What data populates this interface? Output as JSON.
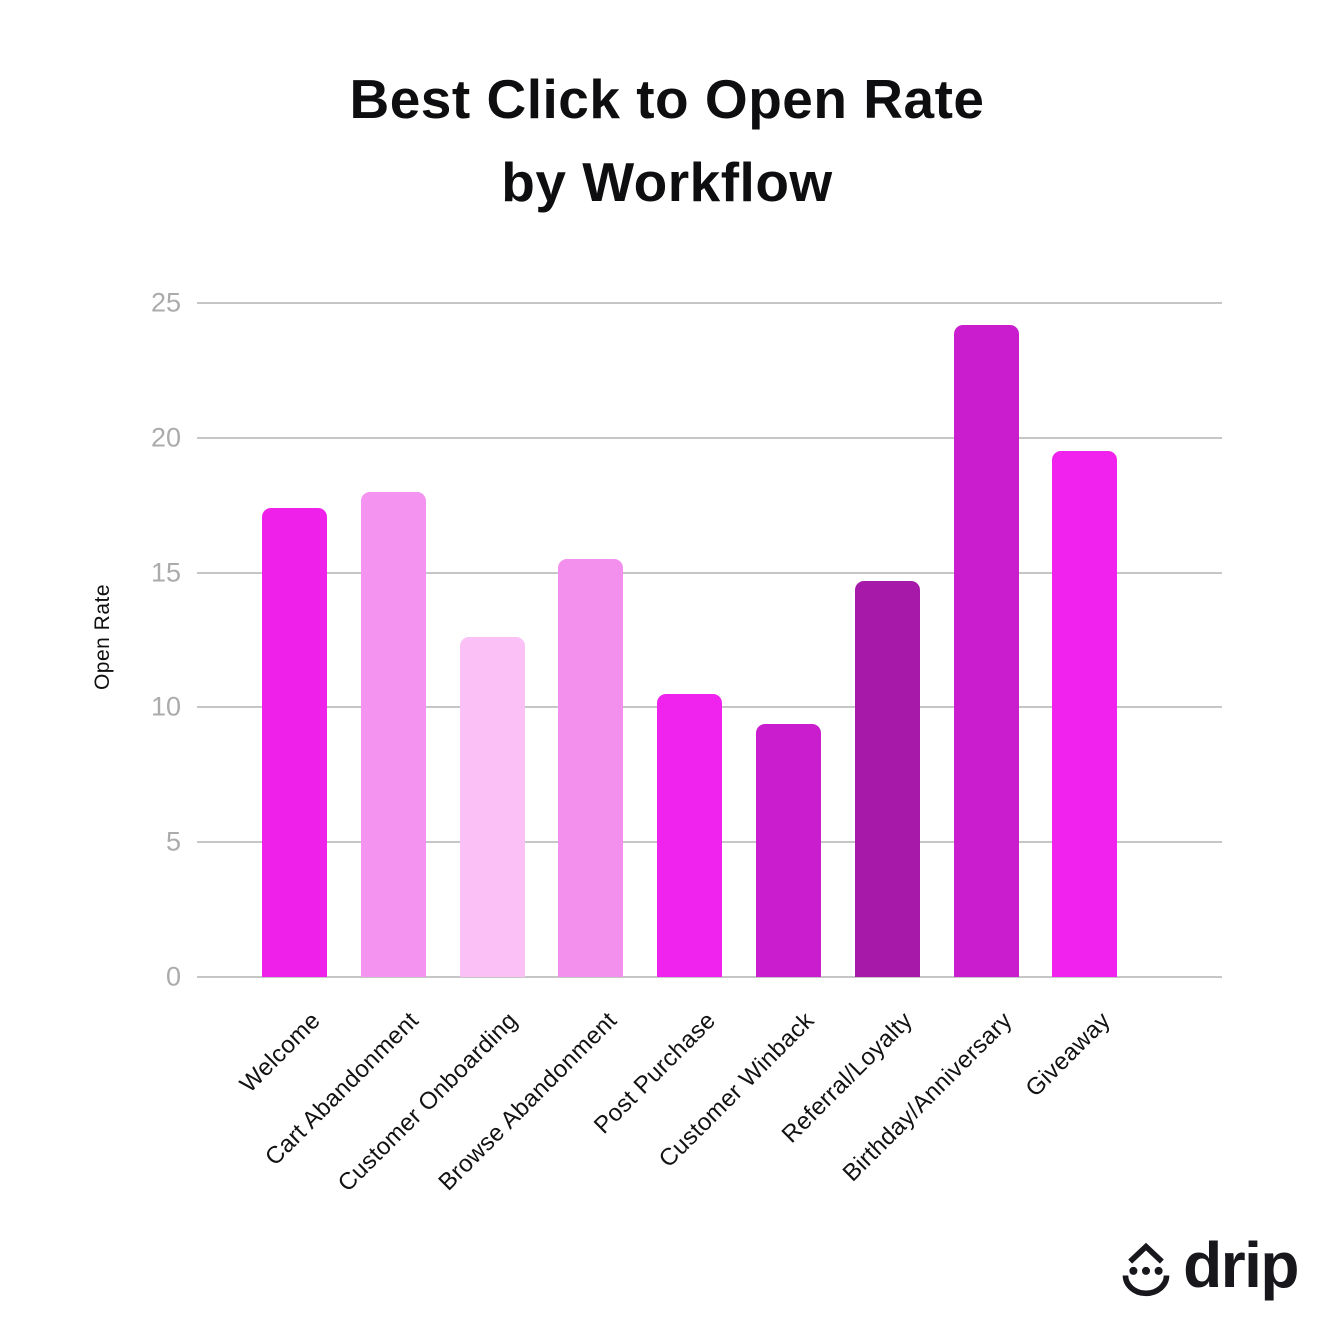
{
  "title": {
    "line1": "Best Click to Open Rate",
    "line2": "by Workflow"
  },
  "chart_data": {
    "type": "bar",
    "title": "Best Click to Open Rate by Workflow",
    "xlabel": "",
    "ylabel": "Open Rate",
    "ylim": [
      0,
      25
    ],
    "yticks": [
      0,
      5,
      10,
      15,
      20,
      25
    ],
    "grid": true,
    "legend": false,
    "categories": [
      "Welcome",
      "Cart Abandonment",
      "Customer Onboarding",
      "Browse Abandonment",
      "Post Purchase",
      "Customer Winback",
      "Referral/Loyalty",
      "Birthday/Anniversary",
      "Giveaway"
    ],
    "values": [
      17.4,
      18.0,
      12.6,
      15.5,
      10.5,
      9.4,
      14.7,
      24.2,
      19.5
    ],
    "bar_colors": [
      "#EE20EA",
      "#F493F0",
      "#FBC0F6",
      "#F38FEC",
      "#F022EE",
      "#CA1ECE",
      "#A719A8",
      "#CA1ECE",
      "#F122EE"
    ]
  },
  "branding": {
    "logo_text": "drip",
    "logo_icon": "drip-droplet-face-icon"
  },
  "colors": {
    "grid": "#C6C6C6",
    "tick_label": "#ABABAB",
    "text": "#0E0E10"
  }
}
